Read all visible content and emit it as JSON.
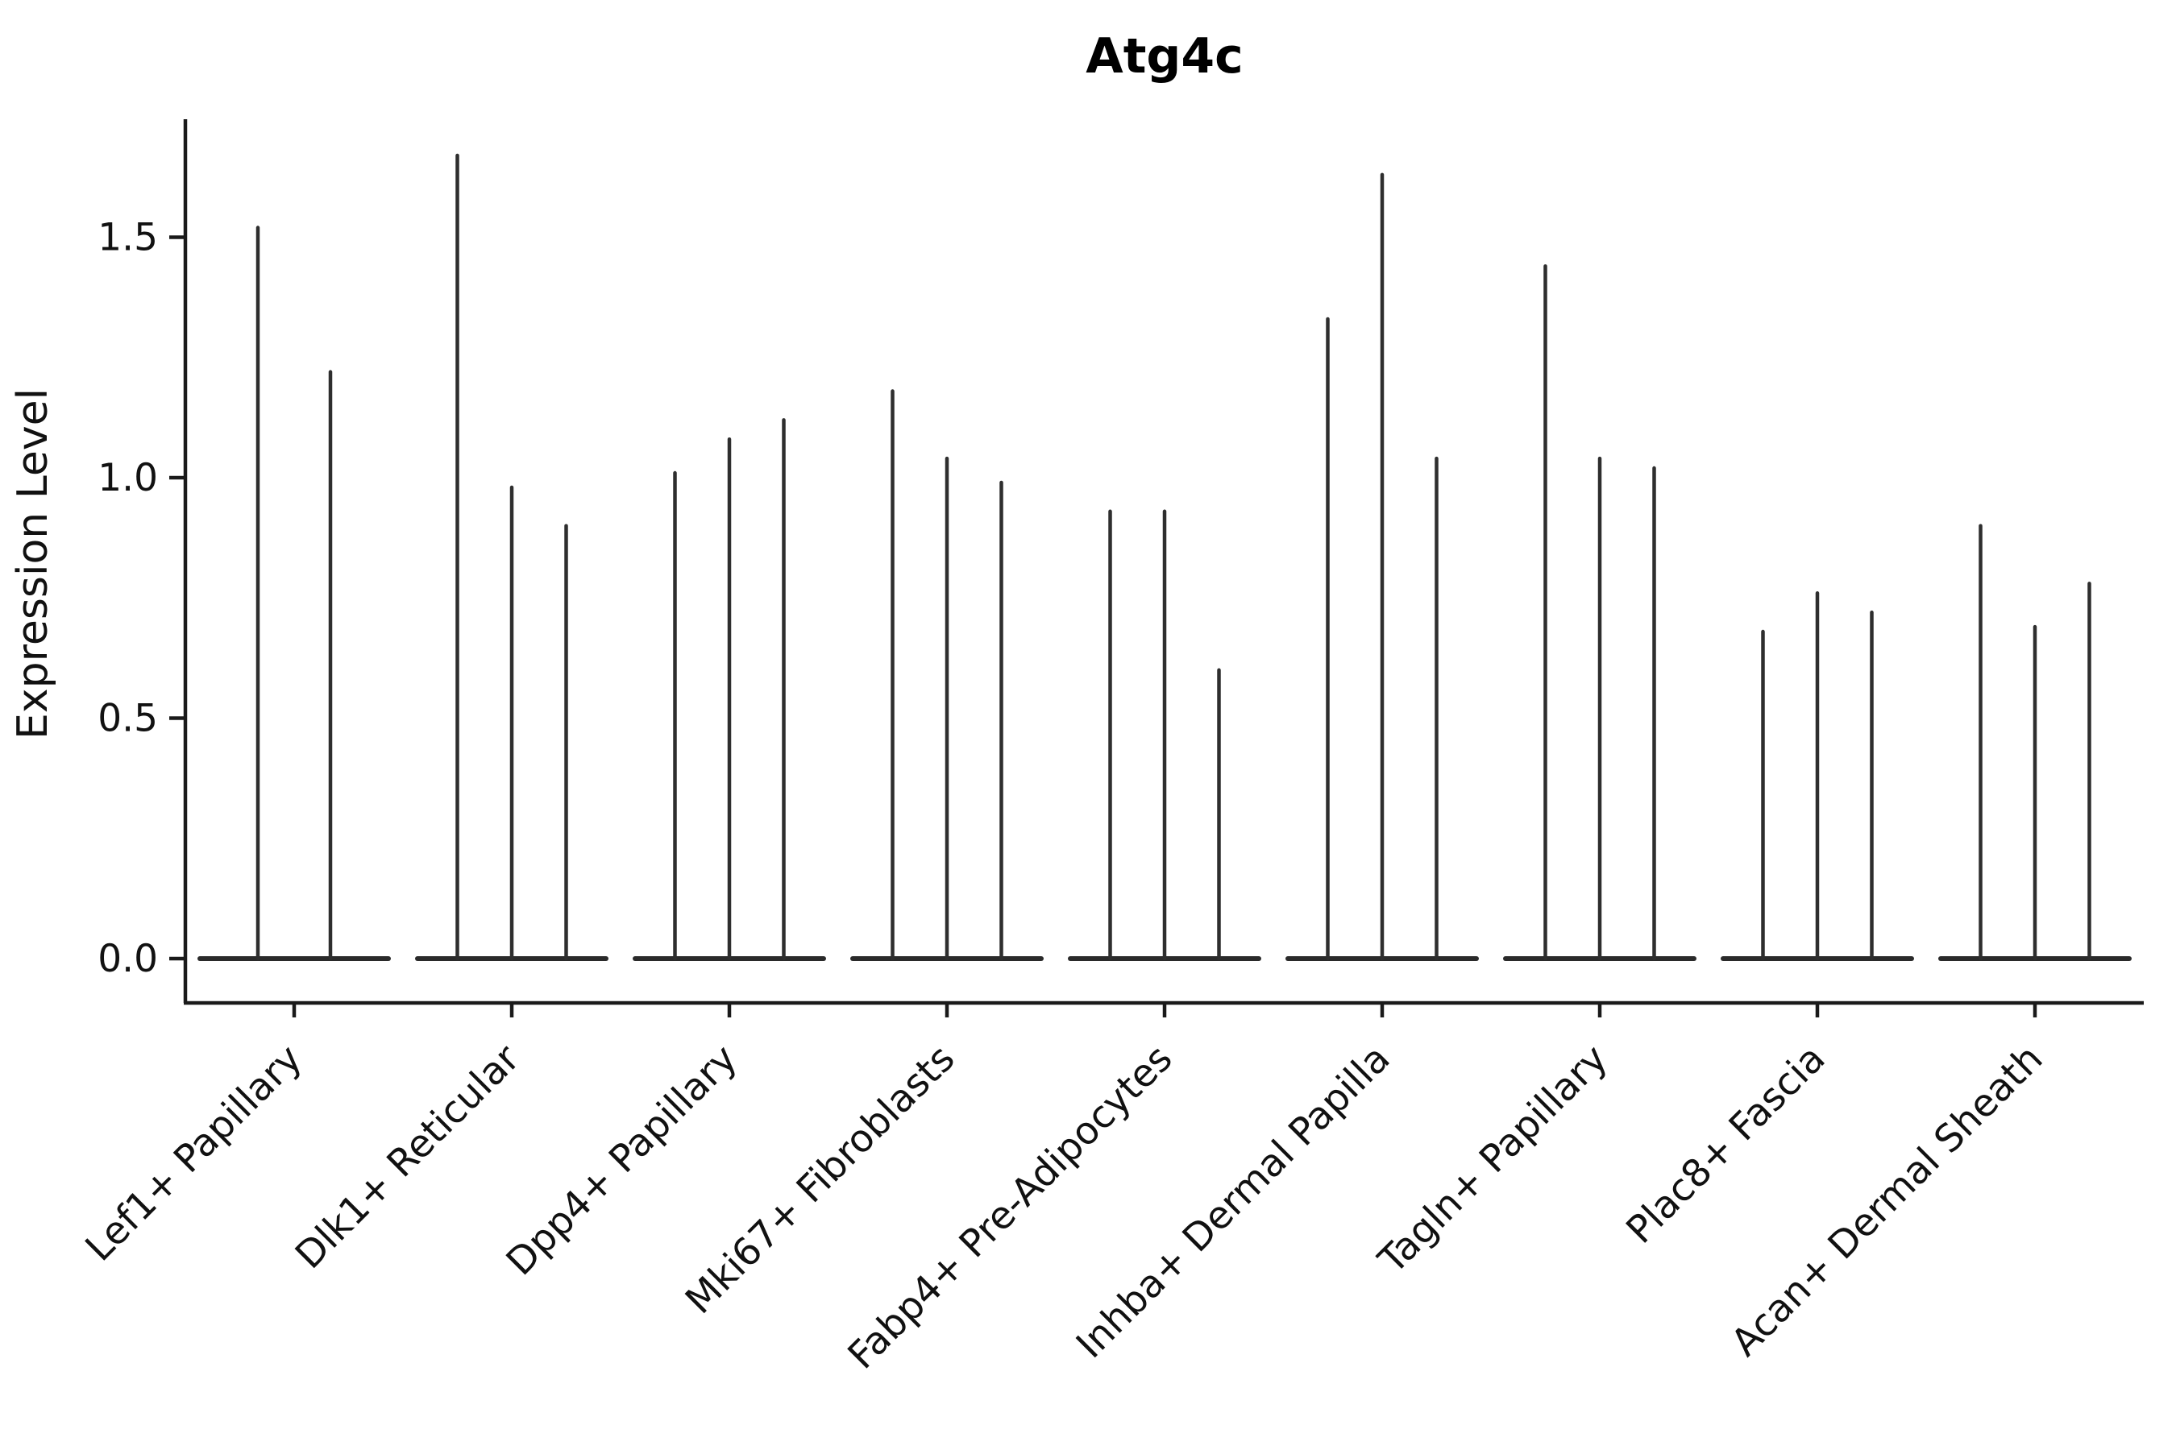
{
  "chart_data": {
    "type": "violin",
    "title": "Atg4c",
    "xlabel": "",
    "ylabel": "Expression Level",
    "ylim": [
      -0.06,
      1.75
    ],
    "ytick_values": [
      0.0,
      0.5,
      1.0,
      1.5
    ],
    "ytick_labels": [
      "0.0",
      "0.5",
      "1.0",
      "1.5"
    ],
    "grid": false,
    "legend": "none",
    "description": "Violin plot of Atg4c expression per cell type; each group shows narrow spikes rising from a dense baseline at 0. Spike maxima are the peak expression values of each violin.",
    "categories": [
      "Lef1+ Papillary",
      "Dlk1+ Reticular",
      "Dpp4+ Papillary",
      "Mki67+ Fibroblasts",
      "Fabp4+ Pre-Adipocytes",
      "Inhba+ Dermal Papilla",
      "Tagln+ Papillary",
      "Plac8+ Fascia",
      "Acan+ Dermal Sheath"
    ],
    "groups": [
      {
        "category": "Lef1+ Papillary",
        "baseline": 0.0,
        "spike_maxima": [
          1.52,
          1.22
        ]
      },
      {
        "category": "Dlk1+ Reticular",
        "baseline": 0.0,
        "spike_maxima": [
          1.67,
          0.98,
          0.9
        ]
      },
      {
        "category": "Dpp4+ Papillary",
        "baseline": 0.0,
        "spike_maxima": [
          1.01,
          1.08,
          1.12
        ]
      },
      {
        "category": "Mki67+ Fibroblasts",
        "baseline": 0.0,
        "spike_maxima": [
          1.18,
          1.04,
          0.99
        ]
      },
      {
        "category": "Fabp4+ Pre-Adipocytes",
        "baseline": 0.0,
        "spike_maxima": [
          0.93,
          0.93,
          0.6
        ]
      },
      {
        "category": "Inhba+ Dermal Papilla",
        "baseline": 0.0,
        "spike_maxima": [
          1.33,
          1.63,
          1.04
        ]
      },
      {
        "category": "Tagln+ Papillary",
        "baseline": 0.0,
        "spike_maxima": [
          1.44,
          1.04,
          1.02
        ]
      },
      {
        "category": "Plac8+ Fascia",
        "baseline": 0.0,
        "spike_maxima": [
          0.68,
          0.76,
          0.72
        ]
      },
      {
        "category": "Acan+ Dermal Sheath",
        "baseline": 0.0,
        "spike_maxima": [
          0.9,
          0.69,
          0.78
        ]
      }
    ],
    "colors": {
      "spike": "#2e2e2e",
      "baseline": "#2a2a2a",
      "axis": "#1a1a1a",
      "text": "#111111",
      "background": "#ffffff"
    }
  }
}
